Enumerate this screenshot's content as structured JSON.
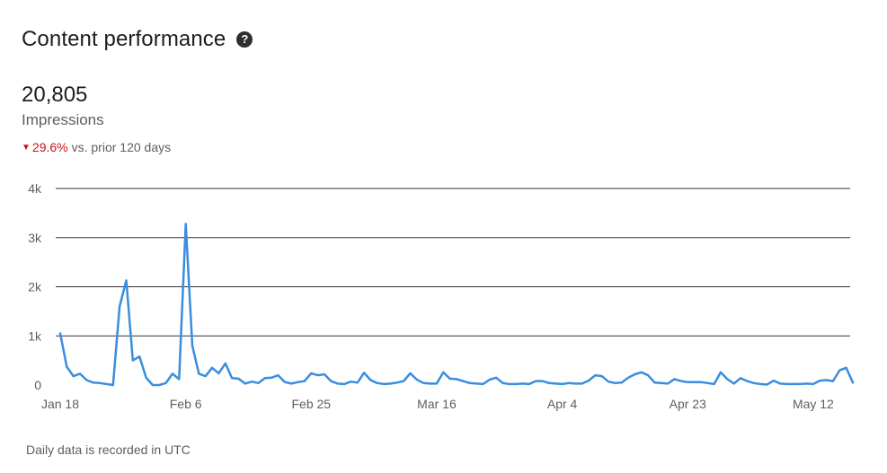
{
  "header": {
    "title": "Content performance",
    "help_icon": "question-circle-icon"
  },
  "metric": {
    "value": "20,805",
    "label": "Impressions",
    "change_direction": "down",
    "change_pct": "29.6%",
    "change_text": "vs. prior 120 days"
  },
  "colors": {
    "line": "#3a8dde",
    "negative": "#cc1016",
    "grid": "#333333"
  },
  "footnote": "Daily data is recorded in UTC",
  "chart_data": {
    "type": "line",
    "title": "",
    "xlabel": "",
    "ylabel": "",
    "ylim": [
      0,
      4000
    ],
    "y_ticks": [
      "0",
      "1k",
      "2k",
      "3k",
      "4k"
    ],
    "x_tick_labels": [
      "Jan 18",
      "Feb 6",
      "Feb 25",
      "Mar 16",
      "Apr 4",
      "Apr 23",
      "May 12"
    ],
    "x_tick_day_index": [
      0,
      19,
      38,
      57,
      76,
      95,
      114
    ],
    "grid": true,
    "series": [
      {
        "values": [
          1050,
          370,
          180,
          230,
          100,
          50,
          40,
          20,
          0,
          1600,
          2130,
          500,
          580,
          150,
          0,
          0,
          40,
          230,
          120,
          3280,
          800,
          230,
          180,
          350,
          240,
          440,
          140,
          130,
          30,
          70,
          40,
          140,
          150,
          200,
          60,
          30,
          60,
          80,
          240,
          200,
          220,
          80,
          30,
          20,
          70,
          50,
          250,
          100,
          40,
          20,
          30,
          50,
          80,
          240,
          110,
          40,
          30,
          30,
          260,
          130,
          120,
          80,
          40,
          30,
          20,
          110,
          150,
          40,
          20,
          20,
          30,
          20,
          80,
          80,
          40,
          30,
          20,
          40,
          30,
          30,
          90,
          200,
          180,
          70,
          40,
          50,
          150,
          220,
          260,
          200,
          50,
          40,
          30,
          120,
          80,
          60,
          60,
          60,
          40,
          20,
          260,
          120,
          30,
          140,
          80,
          40,
          20,
          10,
          90,
          30,
          20,
          20,
          20,
          30,
          20,
          90,
          100,
          80,
          300,
          350,
          50
        ]
      }
    ]
  }
}
